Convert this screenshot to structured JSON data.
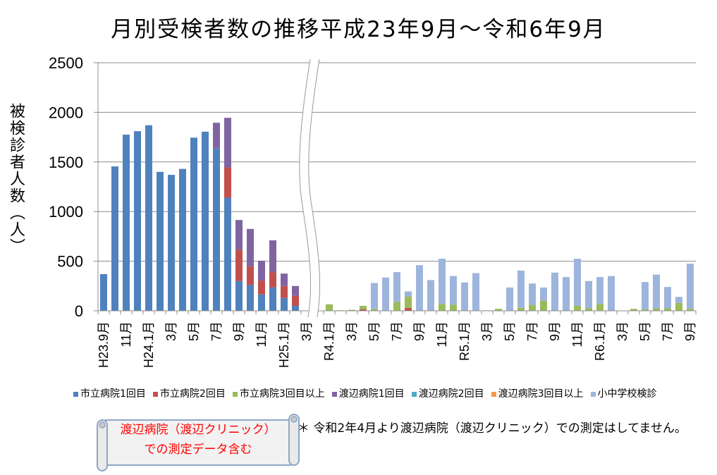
{
  "chart_data": {
    "type": "bar",
    "stacked": true,
    "title": "月別受検者数の推移平成23年9月～令和6年9月",
    "xlabel": "",
    "ylabel": "被検診者人数（人）",
    "ylim": [
      0,
      2500
    ],
    "yticks": [
      0,
      500,
      1000,
      1500,
      2000,
      2500
    ],
    "grid": true,
    "legend": "bottom",
    "x_axis_break": true,
    "categories": [
      "H23.9月",
      "",
      "11月",
      "",
      "H24.1月",
      "",
      "3月",
      "",
      "5月",
      "",
      "7月",
      "",
      "9月",
      "",
      "11月",
      "",
      "H25.1月",
      "",
      "3月",
      "",
      "R4.1月",
      "",
      "3月",
      "",
      "5月",
      "",
      "7月",
      "",
      "9月",
      "",
      "11月",
      "",
      "R5.1月",
      "",
      "3月",
      "",
      "5月",
      "",
      "7月",
      "",
      "9月",
      "",
      "11月",
      "",
      "R6.1月",
      "",
      "3月",
      "",
      "5月",
      "",
      "7月",
      "",
      "9月"
    ],
    "series": [
      {
        "name": "市立病院1回目",
        "color": "#4F81BD",
        "values": [
          370,
          1455,
          1775,
          1810,
          1870,
          1400,
          1370,
          1430,
          1745,
          1805,
          1635,
          1140,
          300,
          260,
          165,
          235,
          130,
          50,
          0,
          0,
          0,
          0,
          0,
          0,
          0,
          0,
          0,
          0,
          0,
          0,
          0,
          0,
          0,
          0,
          0,
          0,
          0,
          0,
          0,
          0,
          0,
          0,
          0,
          0,
          0,
          0,
          0,
          0,
          0,
          0,
          0,
          0,
          0
        ]
      },
      {
        "name": "市立病院2回目",
        "color": "#C0504D",
        "values": [
          0,
          0,
          0,
          0,
          0,
          0,
          0,
          0,
          0,
          0,
          0,
          305,
          315,
          190,
          140,
          155,
          120,
          100,
          0,
          0,
          0,
          0,
          0,
          15,
          0,
          0,
          0,
          30,
          0,
          0,
          0,
          0,
          0,
          0,
          0,
          0,
          0,
          0,
          0,
          0,
          0,
          0,
          0,
          0,
          0,
          0,
          0,
          0,
          0,
          0,
          0,
          0,
          0
        ]
      },
      {
        "name": "市立病院3回目以上",
        "color": "#9BBB59",
        "values": [
          0,
          0,
          0,
          0,
          0,
          0,
          0,
          0,
          0,
          0,
          0,
          0,
          0,
          0,
          0,
          0,
          0,
          0,
          0,
          0,
          65,
          5,
          10,
          35,
          20,
          0,
          90,
          115,
          0,
          0,
          70,
          60,
          0,
          0,
          5,
          20,
          0,
          30,
          60,
          100,
          0,
          0,
          50,
          25,
          70,
          0,
          0,
          20,
          15,
          25,
          25,
          80,
          20
        ]
      },
      {
        "name": "渡辺病院1回目",
        "color": "#8064A2",
        "values": [
          0,
          0,
          0,
          0,
          0,
          0,
          0,
          0,
          0,
          0,
          260,
          500,
          300,
          375,
          200,
          320,
          125,
          100,
          0,
          0,
          0,
          0,
          0,
          0,
          0,
          0,
          0,
          0,
          0,
          0,
          0,
          0,
          0,
          0,
          0,
          0,
          0,
          0,
          0,
          0,
          0,
          0,
          0,
          0,
          0,
          0,
          0,
          0,
          0,
          0,
          0,
          0,
          0
        ]
      },
      {
        "name": "渡辺病院2回目",
        "color": "#4BACC6",
        "values": [
          0,
          0,
          0,
          0,
          0,
          0,
          0,
          0,
          0,
          0,
          0,
          0,
          0,
          0,
          0,
          0,
          0,
          0,
          0,
          0,
          0,
          0,
          0,
          0,
          0,
          0,
          0,
          0,
          0,
          0,
          0,
          0,
          0,
          0,
          0,
          0,
          0,
          0,
          0,
          0,
          0,
          0,
          0,
          0,
          0,
          0,
          0,
          0,
          0,
          0,
          0,
          0,
          0
        ]
      },
      {
        "name": "渡辺病院3回目以上",
        "color": "#F79646",
        "values": [
          0,
          0,
          0,
          0,
          0,
          0,
          0,
          0,
          0,
          0,
          0,
          0,
          0,
          0,
          0,
          0,
          0,
          0,
          0,
          0,
          0,
          0,
          0,
          0,
          0,
          0,
          0,
          0,
          0,
          0,
          0,
          0,
          0,
          0,
          0,
          0,
          0,
          0,
          0,
          0,
          0,
          0,
          0,
          0,
          0,
          0,
          0,
          0,
          0,
          0,
          0,
          0,
          0
        ]
      },
      {
        "name": "小中学校検診",
        "color": "#9DB5DC",
        "values": [
          0,
          0,
          0,
          0,
          0,
          0,
          0,
          0,
          0,
          0,
          0,
          0,
          0,
          0,
          0,
          0,
          0,
          0,
          0,
          0,
          0,
          0,
          0,
          0,
          260,
          335,
          300,
          50,
          460,
          310,
          455,
          290,
          285,
          380,
          0,
          0,
          235,
          375,
          215,
          135,
          385,
          340,
          475,
          275,
          270,
          350,
          0,
          0,
          275,
          340,
          215,
          60,
          455
        ]
      }
    ]
  },
  "annotation": {
    "lines": [
      "渡辺病院（渡辺クリニック）",
      "での測定データ含む"
    ],
    "text_color": "#FF0000"
  },
  "footnote": "＊ 令和2年4月より渡辺病院（渡辺クリニック）での測定はしてません。"
}
